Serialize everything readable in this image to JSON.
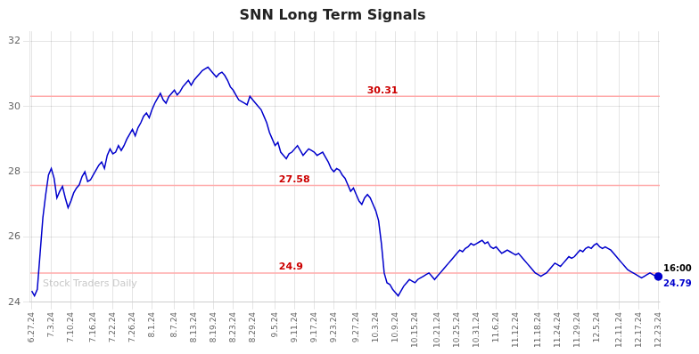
{
  "chart_data": {
    "type": "line",
    "title": "SNN Long Term Signals",
    "color": "#0000cc",
    "grid": true,
    "ylim": [
      24.0,
      32.3
    ],
    "yticks": [
      24,
      26,
      28,
      30,
      32
    ],
    "hlines": [
      {
        "y": 30.31,
        "color": "#ffaaaa"
      },
      {
        "y": 27.58,
        "color": "#ffaaaa"
      },
      {
        "y": 24.9,
        "color": "#ffaaaa"
      }
    ],
    "annotations": [
      {
        "text": "30.31",
        "y": 30.31,
        "color": "#cc0000"
      },
      {
        "text": "27.58",
        "y": 27.58,
        "color": "#cc0000"
      },
      {
        "text": "24.9",
        "y": 24.9,
        "color": "#cc0000"
      }
    ],
    "end_labels": [
      {
        "text": "16:00",
        "color": "#000000"
      },
      {
        "text": "24.79",
        "color": "#0000cc"
      }
    ],
    "watermark": {
      "text": "Stock Traders Daily",
      "color": "#bbbbbb"
    },
    "categories": [
      "6.27.24",
      null,
      null,
      null,
      null,
      null,
      null,
      "7.3.24",
      null,
      null,
      null,
      null,
      null,
      null,
      "7.10.24",
      null,
      null,
      null,
      null,
      null,
      null,
      null,
      "7.16.24",
      null,
      null,
      null,
      null,
      null,
      null,
      "7.22.24",
      null,
      null,
      null,
      null,
      null,
      null,
      "7.26.24",
      null,
      null,
      null,
      null,
      null,
      null,
      "8.1.24",
      null,
      null,
      null,
      null,
      null,
      null,
      null,
      "8.7.24",
      null,
      null,
      null,
      null,
      null,
      null,
      "8.13.24",
      null,
      null,
      null,
      null,
      null,
      null,
      "8.19.24",
      null,
      null,
      null,
      null,
      null,
      null,
      "8.23.24",
      null,
      null,
      null,
      null,
      null,
      null,
      "8.29.24",
      null,
      null,
      null,
      null,
      null,
      null,
      null,
      "9.5.24",
      null,
      null,
      null,
      null,
      null,
      null,
      "9.11.24",
      null,
      null,
      null,
      null,
      null,
      null,
      "9.17.24",
      null,
      null,
      null,
      null,
      null,
      null,
      "9.23.24",
      null,
      null,
      null,
      null,
      null,
      null,
      null,
      "9.27.24",
      null,
      null,
      null,
      null,
      null,
      null,
      "10.3.24",
      null,
      null,
      null,
      null,
      null,
      null,
      "10.9.24",
      null,
      null,
      null,
      null,
      null,
      null,
      "10.15.24",
      null,
      null,
      null,
      null,
      null,
      null,
      null,
      "10.21.24",
      null,
      null,
      null,
      null,
      null,
      null,
      "10.25.24",
      null,
      null,
      null,
      null,
      null,
      null,
      "10.31.24",
      null,
      null,
      null,
      null,
      null,
      null,
      "11.6.24",
      null,
      null,
      null,
      null,
      null,
      null,
      "11.12.24",
      null,
      null,
      null,
      null,
      null,
      null,
      null,
      "11.18.24",
      null,
      null,
      null,
      null,
      null,
      null,
      "11.24.24",
      null,
      null,
      null,
      null,
      null,
      null,
      "11.29.24",
      null,
      null,
      null,
      null,
      null,
      null,
      "12.5.24",
      null,
      null,
      null,
      null,
      null,
      null,
      null,
      "12.11.24",
      null,
      null,
      null,
      null,
      null,
      null,
      "12.17.24",
      null,
      null,
      null,
      null,
      null,
      null,
      "12.23.24"
    ],
    "values": [
      24.35,
      24.2,
      24.4,
      25.5,
      26.6,
      27.3,
      27.9,
      28.1,
      27.8,
      27.2,
      27.4,
      27.55,
      27.2,
      26.9,
      27.1,
      27.35,
      27.5,
      27.6,
      27.85,
      28.0,
      27.7,
      27.75,
      27.9,
      28.05,
      28.2,
      28.3,
      28.1,
      28.5,
      28.7,
      28.55,
      28.6,
      28.8,
      28.65,
      28.8,
      29.0,
      29.15,
      29.3,
      29.1,
      29.35,
      29.5,
      29.7,
      29.8,
      29.65,
      29.9,
      30.1,
      30.25,
      30.4,
      30.2,
      30.1,
      30.3,
      30.4,
      30.5,
      30.35,
      30.45,
      30.6,
      30.7,
      30.8,
      30.65,
      30.8,
      30.9,
      31.0,
      31.1,
      31.15,
      31.2,
      31.1,
      31.0,
      30.9,
      31.0,
      31.05,
      30.95,
      30.8,
      30.6,
      30.5,
      30.35,
      30.2,
      30.15,
      30.1,
      30.05,
      30.31,
      30.2,
      30.1,
      30.0,
      29.9,
      29.7,
      29.5,
      29.2,
      29.0,
      28.8,
      28.9,
      28.6,
      28.5,
      28.4,
      28.55,
      28.6,
      28.7,
      28.8,
      28.65,
      28.5,
      28.6,
      28.7,
      28.65,
      28.6,
      28.5,
      28.55,
      28.6,
      28.45,
      28.3,
      28.1,
      28.0,
      28.1,
      28.05,
      27.9,
      27.8,
      27.6,
      27.4,
      27.5,
      27.3,
      27.1,
      27.0,
      27.2,
      27.3,
      27.2,
      27.0,
      26.8,
      26.5,
      25.8,
      24.9,
      24.6,
      24.55,
      24.4,
      24.3,
      24.2,
      24.35,
      24.5,
      24.6,
      24.7,
      24.65,
      24.6,
      24.7,
      24.75,
      24.8,
      24.85,
      24.9,
      24.8,
      24.7,
      24.8,
      24.9,
      25.0,
      25.1,
      25.2,
      25.3,
      25.4,
      25.5,
      25.6,
      25.55,
      25.65,
      25.7,
      25.8,
      25.75,
      25.8,
      25.85,
      25.9,
      25.8,
      25.85,
      25.7,
      25.65,
      25.7,
      25.6,
      25.5,
      25.55,
      25.6,
      25.55,
      25.5,
      25.45,
      25.5,
      25.4,
      25.3,
      25.2,
      25.1,
      25.0,
      24.9,
      24.85,
      24.8,
      24.85,
      24.9,
      25.0,
      25.1,
      25.2,
      25.15,
      25.1,
      25.2,
      25.3,
      25.4,
      25.35,
      25.4,
      25.5,
      25.6,
      25.55,
      25.65,
      25.7,
      25.65,
      25.75,
      25.8,
      25.7,
      25.65,
      25.7,
      25.65,
      25.6,
      25.5,
      25.4,
      25.3,
      25.2,
      25.1,
      25.0,
      24.95,
      24.9,
      24.85,
      24.8,
      24.75,
      24.8,
      24.85,
      24.9,
      24.85,
      24.8,
      24.79
    ]
  }
}
